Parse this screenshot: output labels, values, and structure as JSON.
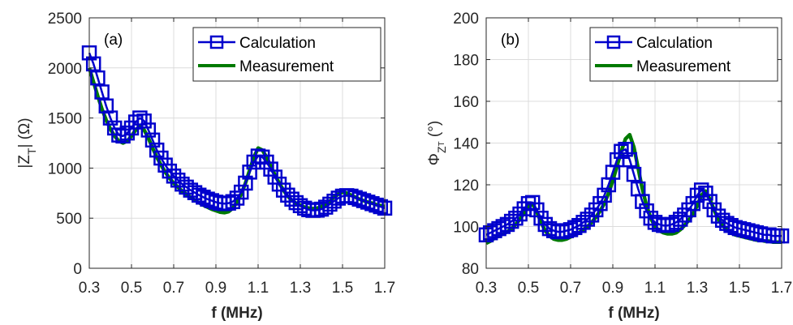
{
  "chart_data": [
    {
      "type": "line",
      "panel_label": "(a)",
      "xlabel": "f (MHz)",
      "ylabel_main": "|Z",
      "ylabel_sub": "T",
      "ylabel_unit": "| (Ω)",
      "xlim": [
        0.3,
        1.7
      ],
      "ylim": [
        0,
        2500
      ],
      "xticks": [
        0.3,
        0.5,
        0.7,
        0.9,
        1.1,
        1.3,
        1.5,
        1.7
      ],
      "xtick_labels": [
        "0.3",
        "0.5",
        "0.7",
        "0.9",
        "1.1",
        "1.3",
        "1.5",
        "1.7"
      ],
      "yticks": [
        0,
        500,
        1000,
        1500,
        2000,
        2500
      ],
      "ytick_labels": [
        "0",
        "500",
        "1000",
        "1500",
        "2000",
        "2500"
      ],
      "grid": true,
      "legend_position": "top-right",
      "series": [
        {
          "name": "Calculation",
          "color": "#0000cc",
          "marker": "square",
          "x": [
            0.3,
            0.32,
            0.34,
            0.36,
            0.38,
            0.4,
            0.42,
            0.44,
            0.46,
            0.48,
            0.5,
            0.52,
            0.54,
            0.56,
            0.58,
            0.6,
            0.62,
            0.64,
            0.66,
            0.68,
            0.7,
            0.72,
            0.74,
            0.76,
            0.78,
            0.8,
            0.82,
            0.84,
            0.86,
            0.88,
            0.9,
            0.92,
            0.94,
            0.96,
            0.98,
            1.0,
            1.02,
            1.04,
            1.06,
            1.08,
            1.1,
            1.12,
            1.14,
            1.16,
            1.18,
            1.2,
            1.22,
            1.24,
            1.26,
            1.28,
            1.3,
            1.32,
            1.34,
            1.36,
            1.38,
            1.4,
            1.42,
            1.44,
            1.46,
            1.48,
            1.5,
            1.52,
            1.54,
            1.56,
            1.58,
            1.6,
            1.62,
            1.64,
            1.66,
            1.68,
            1.7
          ],
          "y": [
            2150,
            2040,
            1900,
            1760,
            1620,
            1500,
            1400,
            1330,
            1320,
            1350,
            1400,
            1460,
            1500,
            1470,
            1380,
            1280,
            1180,
            1100,
            1030,
            970,
            920,
            880,
            840,
            810,
            780,
            755,
            730,
            710,
            690,
            675,
            660,
            650,
            645,
            650,
            665,
            700,
            760,
            850,
            960,
            1060,
            1120,
            1110,
            1060,
            990,
            910,
            840,
            780,
            730,
            690,
            655,
            625,
            600,
            585,
            578,
            580,
            590,
            610,
            640,
            670,
            700,
            720,
            725,
            720,
            705,
            690,
            675,
            660,
            645,
            630,
            615,
            600
          ]
        },
        {
          "name": "Measurement",
          "color": "#007a00",
          "x": [
            0.3,
            0.32,
            0.34,
            0.36,
            0.38,
            0.4,
            0.42,
            0.44,
            0.46,
            0.48,
            0.5,
            0.52,
            0.54,
            0.56,
            0.58,
            0.6,
            0.62,
            0.64,
            0.66,
            0.68,
            0.7,
            0.72,
            0.74,
            0.76,
            0.78,
            0.8,
            0.82,
            0.84,
            0.86,
            0.88,
            0.9,
            0.92,
            0.94,
            0.96,
            0.98,
            1.0,
            1.02,
            1.04,
            1.06,
            1.08,
            1.1,
            1.12,
            1.14,
            1.16,
            1.18,
            1.2,
            1.22,
            1.24,
            1.26,
            1.28,
            1.3,
            1.32,
            1.34,
            1.36,
            1.38,
            1.4,
            1.42,
            1.44,
            1.46,
            1.48,
            1.5,
            1.52,
            1.54,
            1.56,
            1.58,
            1.6,
            1.62,
            1.64,
            1.66,
            1.68,
            1.7
          ],
          "y": [
            2000,
            1860,
            1720,
            1590,
            1480,
            1390,
            1320,
            1270,
            1250,
            1270,
            1320,
            1380,
            1420,
            1380,
            1300,
            1200,
            1110,
            1030,
            960,
            900,
            850,
            810,
            770,
            740,
            710,
            680,
            655,
            630,
            610,
            590,
            575,
            560,
            555,
            565,
            600,
            660,
            740,
            850,
            980,
            1110,
            1200,
            1180,
            1110,
            1020,
            930,
            850,
            780,
            720,
            680,
            650,
            630,
            610,
            600,
            595,
            600,
            615,
            640,
            670,
            710,
            740,
            760,
            750,
            730,
            710,
            690,
            675,
            660,
            650,
            635,
            625,
            615
          ]
        }
      ]
    },
    {
      "type": "line",
      "panel_label": "(b)",
      "xlabel": "f (MHz)",
      "ylabel_main": "Φ",
      "ylabel_sub": "Z",
      "ylabel_subsub": "T",
      "ylabel_unit": " (°)",
      "xlim": [
        0.3,
        1.7
      ],
      "ylim": [
        80,
        200
      ],
      "xticks": [
        0.3,
        0.5,
        0.7,
        0.9,
        1.1,
        1.3,
        1.5,
        1.7
      ],
      "xtick_labels": [
        "0.3",
        "0.5",
        "0.7",
        "0.9",
        "1.1",
        "1.3",
        "1.5",
        "1.7"
      ],
      "yticks": [
        80,
        100,
        120,
        140,
        160,
        180,
        200
      ],
      "ytick_labels": [
        "80",
        "100",
        "120",
        "140",
        "160",
        "180",
        "200"
      ],
      "grid": true,
      "legend_position": "top-right",
      "series": [
        {
          "name": "Calculation",
          "color": "#0000cc",
          "marker": "square",
          "x": [
            0.3,
            0.32,
            0.34,
            0.36,
            0.38,
            0.4,
            0.42,
            0.44,
            0.46,
            0.48,
            0.5,
            0.52,
            0.54,
            0.56,
            0.58,
            0.6,
            0.62,
            0.64,
            0.66,
            0.68,
            0.7,
            0.72,
            0.74,
            0.76,
            0.78,
            0.8,
            0.82,
            0.84,
            0.86,
            0.88,
            0.9,
            0.92,
            0.94,
            0.96,
            0.98,
            1.0,
            1.02,
            1.04,
            1.06,
            1.08,
            1.1,
            1.12,
            1.14,
            1.16,
            1.18,
            1.2,
            1.22,
            1.24,
            1.26,
            1.28,
            1.3,
            1.32,
            1.34,
            1.36,
            1.38,
            1.4,
            1.42,
            1.44,
            1.46,
            1.48,
            1.5,
            1.52,
            1.54,
            1.56,
            1.58,
            1.6,
            1.62,
            1.64,
            1.66,
            1.68,
            1.7
          ],
          "y": [
            96,
            97,
            98,
            99,
            100,
            101,
            102.5,
            104,
            106,
            108.5,
            111,
            111.5,
            108,
            104,
            101,
            99,
            98,
            97.5,
            97.5,
            98,
            98.5,
            99.5,
            100.5,
            102,
            103.5,
            105.5,
            108,
            111,
            115,
            120,
            126,
            132,
            136,
            137,
            132,
            125,
            118,
            112,
            107.5,
            104,
            102,
            101,
            100.5,
            100.5,
            101,
            102,
            103.5,
            105.5,
            108,
            111,
            115,
            117.5,
            116,
            112,
            108,
            105,
            103,
            101.5,
            100.5,
            99.5,
            99,
            98.5,
            98,
            97.5,
            97,
            96.5,
            96,
            96,
            95.5,
            95.5,
            95.5
          ]
        },
        {
          "name": "Measurement",
          "color": "#007a00",
          "x": [
            0.3,
            0.32,
            0.34,
            0.36,
            0.38,
            0.4,
            0.42,
            0.44,
            0.46,
            0.48,
            0.5,
            0.52,
            0.54,
            0.56,
            0.58,
            0.6,
            0.62,
            0.64,
            0.66,
            0.68,
            0.7,
            0.72,
            0.74,
            0.76,
            0.78,
            0.8,
            0.82,
            0.84,
            0.86,
            0.88,
            0.9,
            0.92,
            0.94,
            0.96,
            0.98,
            1.0,
            1.02,
            1.04,
            1.06,
            1.08,
            1.1,
            1.12,
            1.14,
            1.16,
            1.18,
            1.2,
            1.22,
            1.24,
            1.26,
            1.28,
            1.3,
            1.32,
            1.34,
            1.36,
            1.38,
            1.4,
            1.42,
            1.44,
            1.46,
            1.48,
            1.5,
            1.52,
            1.54,
            1.56,
            1.58,
            1.6,
            1.62,
            1.64,
            1.66,
            1.68,
            1.7
          ],
          "y": [
            92,
            93,
            94.5,
            95.5,
            96.5,
            97.5,
            99,
            101,
            103.5,
            106.5,
            109.5,
            111,
            107,
            102,
            98,
            95.5,
            94,
            93.5,
            93.5,
            94,
            95,
            96,
            97,
            98.5,
            100,
            102,
            104.5,
            107.5,
            111,
            116,
            122,
            129,
            136,
            142,
            144,
            138,
            128,
            118,
            110,
            104,
            100,
            98,
            97,
            96.5,
            96.5,
            97,
            98.5,
            100.5,
            103,
            106,
            110,
            115,
            117,
            113,
            108,
            103.5,
            100.5,
            98.5,
            97,
            96,
            95.5,
            95,
            94.5,
            94,
            93.5,
            93.5,
            93,
            93,
            92.5,
            92.5,
            92.5
          ]
        }
      ]
    }
  ]
}
